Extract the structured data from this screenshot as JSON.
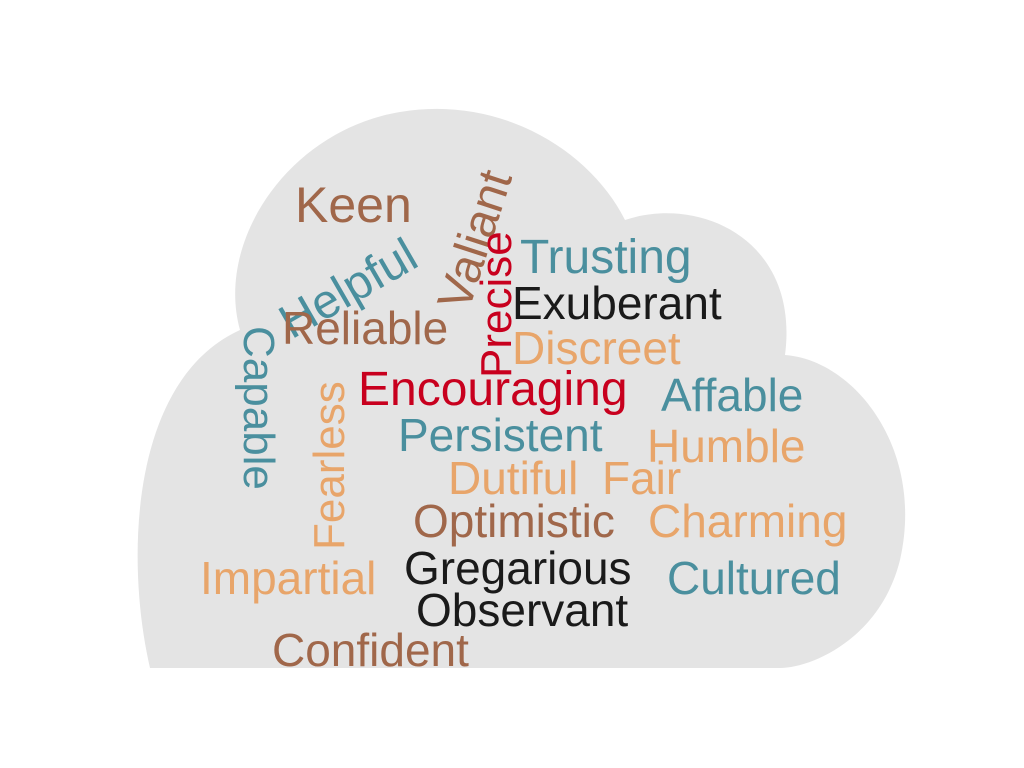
{
  "colors": {
    "background": "#ffffff",
    "cloud": "#e4e4e4",
    "brown": "#a0674a",
    "teal": "#4a8f9e",
    "black": "#1a1a1a",
    "red": "#c8001e",
    "peach": "#e8a56a"
  },
  "words": [
    {
      "text": "Keen",
      "color": "brown"
    },
    {
      "text": "Helpful",
      "color": "teal"
    },
    {
      "text": "Valiant",
      "color": "brown"
    },
    {
      "text": "Precise",
      "color": "red"
    },
    {
      "text": "Trusting",
      "color": "teal"
    },
    {
      "text": "Exuberant",
      "color": "black"
    },
    {
      "text": "Reliable",
      "color": "brown"
    },
    {
      "text": "Discreet",
      "color": "peach"
    },
    {
      "text": "Capable",
      "color": "teal"
    },
    {
      "text": "Fearless",
      "color": "peach"
    },
    {
      "text": "Encouraging",
      "color": "red"
    },
    {
      "text": "Affable",
      "color": "teal"
    },
    {
      "text": "Persistent",
      "color": "teal"
    },
    {
      "text": "Humble",
      "color": "peach"
    },
    {
      "text": "Dutiful",
      "color": "peach"
    },
    {
      "text": "Fair",
      "color": "peach"
    },
    {
      "text": "Optimistic",
      "color": "brown"
    },
    {
      "text": "Charming",
      "color": "peach"
    },
    {
      "text": "Impartial",
      "color": "peach"
    },
    {
      "text": "Gregarious",
      "color": "black"
    },
    {
      "text": "Cultured",
      "color": "teal"
    },
    {
      "text": "Observant",
      "color": "black"
    },
    {
      "text": "Confident",
      "color": "brown"
    }
  ]
}
